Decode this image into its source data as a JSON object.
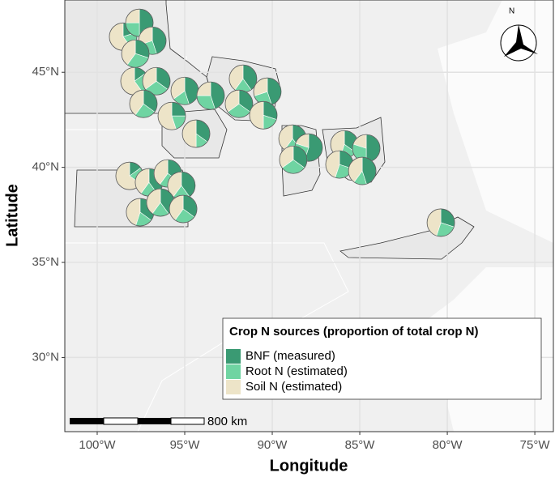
{
  "chart_data": {
    "type": "pie-map",
    "x_label": "Longitude",
    "y_label": "Latitude",
    "xlim": [
      -101.85,
      -73.94
    ],
    "ylim": [
      26.1,
      48.8
    ],
    "xticks": [
      {
        "value": -100,
        "label": "100°W"
      },
      {
        "value": -95,
        "label": "95°W"
      },
      {
        "value": -90,
        "label": "90°W"
      },
      {
        "value": -85,
        "label": "85°W"
      },
      {
        "value": -80,
        "label": "80°W"
      },
      {
        "value": -75,
        "label": "75°W"
      }
    ],
    "yticks": [
      {
        "value": 30,
        "label": "30°N"
      },
      {
        "value": 35,
        "label": "35°N"
      },
      {
        "value": 40,
        "label": "40°N"
      },
      {
        "value": 45,
        "label": "45°N"
      }
    ],
    "grid": true,
    "legend_title": "Crop N sources (proportion of total crop N)",
    "series": [
      {
        "name": "BNF (measured)",
        "color": "#3a9a73"
      },
      {
        "name": "Root N (estimated)",
        "color": "#6fd4a2"
      },
      {
        "name": "Soil N (estimated)",
        "color": "#ede4c8"
      }
    ],
    "scale_bar_label": "800 km",
    "north_label": "N",
    "sites": [
      {
        "x": -98.52,
        "y": 46.87,
        "values": [
          20,
          20,
          60
        ]
      },
      {
        "x": -97.59,
        "y": 47.6,
        "values": [
          50,
          25,
          25
        ]
      },
      {
        "x": -96.85,
        "y": 46.66,
        "values": [
          45,
          25,
          30
        ]
      },
      {
        "x": -97.82,
        "y": 45.98,
        "values": [
          30,
          30,
          40
        ]
      },
      {
        "x": -97.87,
        "y": 44.53,
        "values": [
          15,
          25,
          60
        ]
      },
      {
        "x": -96.62,
        "y": 44.53,
        "values": [
          35,
          30,
          35
        ]
      },
      {
        "x": -97.36,
        "y": 43.34,
        "values": [
          35,
          25,
          40
        ]
      },
      {
        "x": -95.0,
        "y": 44.02,
        "values": [
          45,
          20,
          35
        ]
      },
      {
        "x": -95.74,
        "y": 42.7,
        "values": [
          25,
          20,
          55
        ]
      },
      {
        "x": -93.52,
        "y": 43.77,
        "values": [
          45,
          30,
          25
        ]
      },
      {
        "x": -94.35,
        "y": 41.77,
        "values": [
          35,
          15,
          50
        ]
      },
      {
        "x": -91.67,
        "y": 44.66,
        "values": [
          40,
          20,
          40
        ]
      },
      {
        "x": -90.28,
        "y": 43.98,
        "values": [
          45,
          25,
          30
        ]
      },
      {
        "x": -91.9,
        "y": 43.34,
        "values": [
          35,
          30,
          35
        ]
      },
      {
        "x": -90.51,
        "y": 42.74,
        "values": [
          30,
          20,
          50
        ]
      },
      {
        "x": -88.84,
        "y": 41.51,
        "values": [
          40,
          20,
          40
        ]
      },
      {
        "x": -87.92,
        "y": 41.04,
        "values": [
          55,
          25,
          20
        ]
      },
      {
        "x": -88.8,
        "y": 40.4,
        "values": [
          35,
          30,
          35
        ]
      },
      {
        "x": -85.88,
        "y": 41.21,
        "values": [
          35,
          20,
          45
        ]
      },
      {
        "x": -84.63,
        "y": 41.0,
        "values": [
          50,
          30,
          20
        ]
      },
      {
        "x": -86.16,
        "y": 40.15,
        "values": [
          30,
          25,
          45
        ]
      },
      {
        "x": -84.86,
        "y": 39.81,
        "values": [
          45,
          15,
          40
        ]
      },
      {
        "x": -98.15,
        "y": 39.55,
        "values": [
          15,
          20,
          65
        ]
      },
      {
        "x": -97.04,
        "y": 39.21,
        "values": [
          40,
          20,
          40
        ]
      },
      {
        "x": -95.97,
        "y": 39.68,
        "values": [
          35,
          25,
          40
        ]
      },
      {
        "x": -95.19,
        "y": 39.04,
        "values": [
          40,
          20,
          40
        ]
      },
      {
        "x": -97.55,
        "y": 37.64,
        "values": [
          35,
          20,
          45
        ]
      },
      {
        "x": -96.39,
        "y": 38.15,
        "values": [
          40,
          20,
          40
        ]
      },
      {
        "x": -95.09,
        "y": 37.81,
        "values": [
          35,
          25,
          40
        ]
      },
      {
        "x": -80.37,
        "y": 37.09,
        "values": [
          30,
          25,
          45
        ]
      }
    ]
  }
}
